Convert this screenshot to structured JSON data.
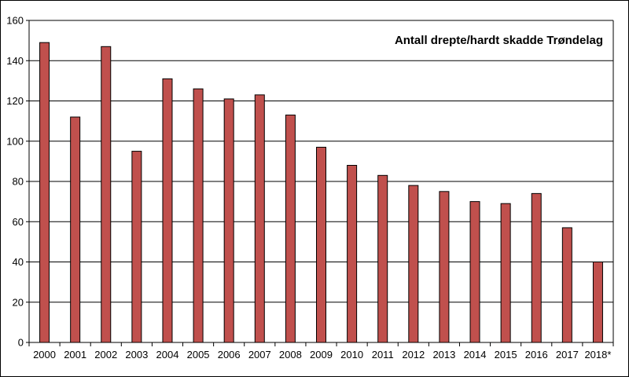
{
  "chart_data": {
    "type": "bar",
    "title": "Antall  drepte/hardt  skadde  Trøndelag",
    "xlabel": "",
    "ylabel": "",
    "categories": [
      "2000",
      "2001",
      "2002",
      "2003",
      "2004",
      "2005",
      "2006",
      "2007",
      "2008",
      "2009",
      "2010",
      "2011",
      "2012",
      "2013",
      "2014",
      "2015",
      "2016",
      "2017",
      "2018*"
    ],
    "values": [
      149,
      112,
      147,
      95,
      131,
      126,
      121,
      123,
      113,
      97,
      88,
      83,
      78,
      75,
      70,
      69,
      74,
      57,
      40
    ],
    "ylim": [
      0,
      160
    ],
    "yticks": [
      0,
      20,
      40,
      60,
      80,
      100,
      120,
      140,
      160
    ],
    "grid": true,
    "legend": "none",
    "colors": {
      "bar_fill": "#c0504d",
      "bar_stroke": "#000000",
      "grid": "#000000"
    }
  }
}
